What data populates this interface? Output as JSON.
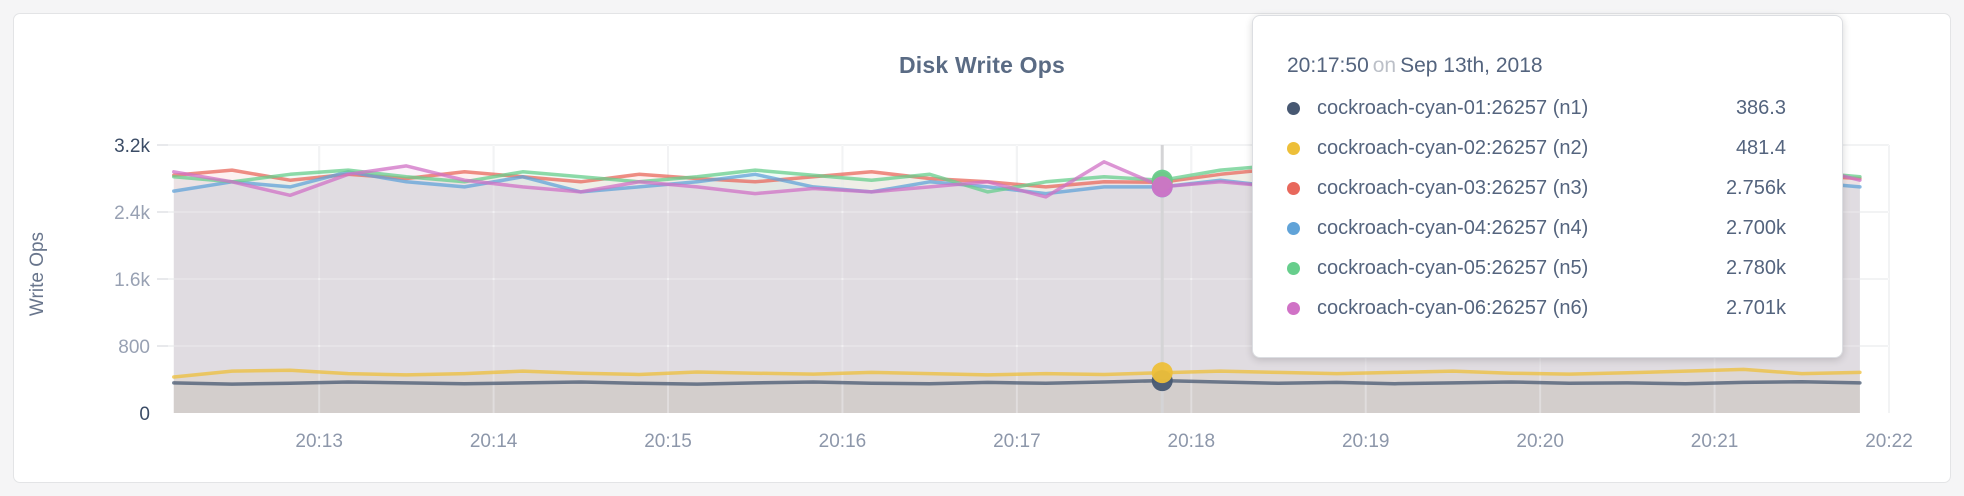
{
  "card": {
    "title": "Disk Write Ops"
  },
  "tooltip": {
    "time": "20:17:50",
    "connector": "on",
    "date": "Sep 13th, 2018",
    "rows": [
      {
        "label": "cockroach-cyan-01:26257 (n1)",
        "value": "386.3",
        "color": "#475872"
      },
      {
        "label": "cockroach-cyan-02:26257 (n2)",
        "value": "481.4",
        "color": "#EDBF39"
      },
      {
        "label": "cockroach-cyan-03:26257 (n3)",
        "value": "2.756k",
        "color": "#E8685C"
      },
      {
        "label": "cockroach-cyan-04:26257 (n4)",
        "value": "2.700k",
        "color": "#61A3D8"
      },
      {
        "label": "cockroach-cyan-05:26257 (n5)",
        "value": "2.780k",
        "color": "#67CE8C"
      },
      {
        "label": "cockroach-cyan-06:26257 (n6)",
        "value": "2.701k",
        "color": "#D072C6"
      }
    ]
  },
  "chart_data": {
    "type": "area",
    "title": "Disk Write Ops",
    "ylabel": "Write Ops",
    "xlabel": "",
    "ylim": [
      0,
      3200
    ],
    "grid": true,
    "legend_position": "tooltip-overlay",
    "x_unit": "seconds after 20:12:00 on Sep 13th, 2018",
    "x_domain": [
      8,
      600
    ],
    "x": [
      10,
      30,
      50,
      70,
      90,
      110,
      130,
      150,
      170,
      190,
      210,
      230,
      250,
      270,
      290,
      310,
      330,
      350,
      370,
      390,
      410,
      430,
      450,
      470,
      490,
      510,
      530,
      550,
      570,
      590
    ],
    "x_ticks": [
      {
        "seconds": 60,
        "label": "20:13"
      },
      {
        "seconds": 120,
        "label": "20:14"
      },
      {
        "seconds": 180,
        "label": "20:15"
      },
      {
        "seconds": 240,
        "label": "20:16"
      },
      {
        "seconds": 300,
        "label": "20:17"
      },
      {
        "seconds": 360,
        "label": "20:18"
      },
      {
        "seconds": 420,
        "label": "20:19"
      },
      {
        "seconds": 480,
        "label": "20:20"
      },
      {
        "seconds": 540,
        "label": "20:21"
      },
      {
        "seconds": 600,
        "label": "20:22"
      }
    ],
    "y_ticks": [
      {
        "value": 3200,
        "label": "3.2k",
        "dark": true
      },
      {
        "value": 2400,
        "label": "2.4k",
        "dark": false
      },
      {
        "value": 1600,
        "label": "1.6k",
        "dark": false
      },
      {
        "value": 800,
        "label": "800",
        "dark": false
      },
      {
        "value": 0,
        "label": "0",
        "dark": true
      }
    ],
    "hover": {
      "seconds": 350,
      "index": 17,
      "time_label": "20:17:50"
    },
    "series": [
      {
        "name": "cockroach-cyan-01:26257 (n1)",
        "color": "#475872",
        "values": [
          360,
          345,
          355,
          370,
          360,
          350,
          360,
          370,
          355,
          345,
          360,
          370,
          355,
          350,
          365,
          355,
          370,
          386.3,
          370,
          355,
          365,
          350,
          360,
          370,
          355,
          360,
          350,
          365,
          372,
          360
        ]
      },
      {
        "name": "cockroach-cyan-02:26257 (n2)",
        "color": "#EDBF39",
        "values": [
          430,
          500,
          510,
          470,
          455,
          470,
          500,
          475,
          460,
          490,
          475,
          465,
          485,
          470,
          455,
          470,
          460,
          481.4,
          500,
          485,
          470,
          485,
          500,
          475,
          465,
          480,
          500,
          520,
          470,
          485
        ]
      },
      {
        "name": "cockroach-cyan-03:26257 (n3)",
        "color": "#E8685C",
        "values": [
          2840,
          2900,
          2780,
          2850,
          2800,
          2880,
          2820,
          2760,
          2850,
          2800,
          2760,
          2820,
          2880,
          2800,
          2760,
          2700,
          2760,
          2756,
          2850,
          2920,
          2800,
          2750,
          2820,
          2880,
          2780,
          2820,
          2760,
          2900,
          2840,
          2800
        ]
      },
      {
        "name": "cockroach-cyan-04:26257 (n4)",
        "color": "#61A3D8",
        "values": [
          2650,
          2760,
          2700,
          2880,
          2760,
          2700,
          2820,
          2640,
          2700,
          2760,
          2850,
          2700,
          2640,
          2760,
          2700,
          2620,
          2700,
          2700,
          2780,
          2700,
          2850,
          2920,
          2780,
          2700,
          2760,
          2640,
          2700,
          2820,
          2760,
          2700
        ]
      },
      {
        "name": "cockroach-cyan-05:26257 (n5)",
        "color": "#67CE8C",
        "values": [
          2820,
          2760,
          2850,
          2900,
          2820,
          2760,
          2880,
          2820,
          2760,
          2820,
          2900,
          2840,
          2780,
          2850,
          2640,
          2760,
          2820,
          2780,
          2900,
          2960,
          2850,
          2780,
          2850,
          2900,
          2820,
          2760,
          2850,
          2780,
          2880,
          2820
        ]
      },
      {
        "name": "cockroach-cyan-06:26257 (n6)",
        "color": "#D072C6",
        "values": [
          2880,
          2760,
          2600,
          2850,
          2950,
          2780,
          2700,
          2640,
          2760,
          2700,
          2620,
          2680,
          2640,
          2700,
          2760,
          2580,
          3000,
          2701,
          2760,
          2700,
          2640,
          2710,
          2650,
          2700,
          2750,
          2680,
          2620,
          2700,
          2950,
          2780
        ]
      }
    ]
  },
  "style": {
    "grid_color": "#e8e9ec",
    "grid_overlay_color": "rgba(255,255,255,0.45)",
    "hover_line_color": "#d4d4d6",
    "tick_dark_color": "#3b4c66",
    "tick_light_color": "#98a1b3",
    "x_tick_color": "#8d97aa",
    "fill_opacity": 0.09,
    "line_opacity": 0.75
  }
}
